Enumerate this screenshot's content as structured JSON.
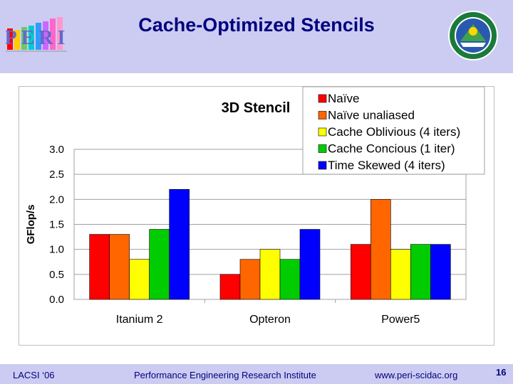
{
  "header": {
    "title": "Cache-Optimized Stencils",
    "logo_text": "PERI"
  },
  "footer": {
    "left": "LACSI ‘06",
    "center": "Performance Engineering Research Institute",
    "right": "www.peri-scidac.org",
    "page_number": "16"
  },
  "colors": {
    "banner": "#ccccf2",
    "title_text": "#000080"
  },
  "chart_data": {
    "type": "bar",
    "title": "3D Stencil",
    "ylabel": "GFlop/s",
    "xlabel": "",
    "ylim": [
      0,
      3.0
    ],
    "yticks": [
      "0.0",
      "0.5",
      "1.0",
      "1.5",
      "2.0",
      "2.5",
      "3.0"
    ],
    "grid": true,
    "legend_position": "top-right",
    "categories": [
      "Itanium 2",
      "Opteron",
      "Power5"
    ],
    "series": [
      {
        "name": "Naïve",
        "color": "#ff0000",
        "values": [
          1.3,
          0.5,
          1.1
        ]
      },
      {
        "name": "Naïve unaliased",
        "color": "#ff6600",
        "values": [
          1.3,
          0.8,
          2.0
        ]
      },
      {
        "name": "Cache Oblivious (4 iters)",
        "color": "#ffff00",
        "values": [
          0.8,
          1.0,
          1.0
        ]
      },
      {
        "name": "Cache Concious (1 iter)",
        "color": "#00cc00",
        "values": [
          1.4,
          0.8,
          1.1
        ]
      },
      {
        "name": "Time Skewed (4 iters)",
        "color": "#0000ff",
        "values": [
          2.2,
          1.4,
          1.1
        ]
      }
    ]
  }
}
